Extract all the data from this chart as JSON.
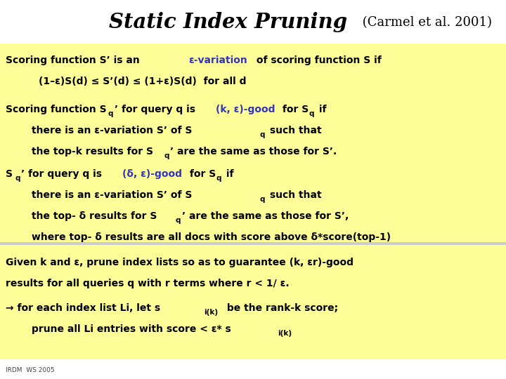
{
  "background_color": "#ffffff",
  "yellow_bg": "#ffff99",
  "text_color": "#000000",
  "blue_color": "#3333bb",
  "figsize": [
    7.2,
    5.4
  ],
  "dpi": 100,
  "title_bold": "Static Index Pruning",
  "title_normal": " (Carmel et al. 2001)",
  "footer": "IRDM  WS 2005"
}
